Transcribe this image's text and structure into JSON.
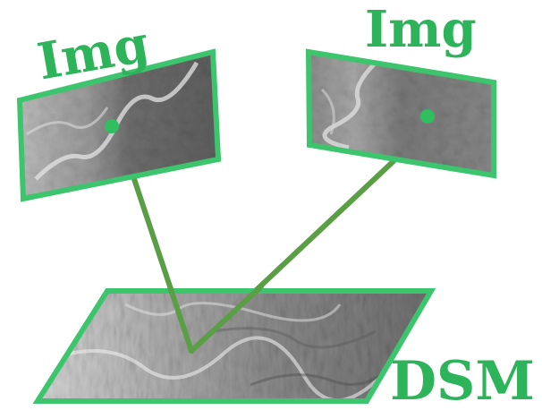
{
  "labels": {
    "image_left": "Img",
    "image_right": "Img",
    "dsm": "DSM"
  },
  "colors": {
    "accent_green": "#2fbf5f",
    "frame_green": "#3cc56c",
    "line_green": "#5a9e45",
    "text_green": "#2db35a",
    "background": "#ffffff"
  }
}
